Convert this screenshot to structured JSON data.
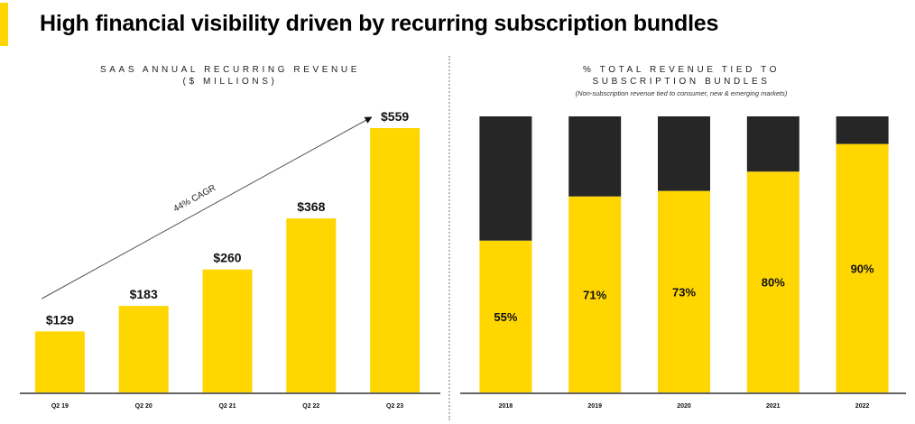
{
  "header": {
    "title": "High financial visibility driven by recurring subscription bundles",
    "accent_color": "#FFD600"
  },
  "colors": {
    "bar_yellow": "#FFD600",
    "bar_dark": "#262626",
    "axis": "#333333"
  },
  "chart_data": [
    {
      "type": "bar",
      "title_line1": "SAAS ANNUAL RECURRING REVENUE",
      "title_line2": "($ MILLIONS)",
      "categories": [
        "Q2 19",
        "Q2 20",
        "Q2 21",
        "Q2 22",
        "Q2 23"
      ],
      "values": [
        129,
        183,
        260,
        368,
        559
      ],
      "data_labels": [
        "$129",
        "$183",
        "$260",
        "$368",
        "$559"
      ],
      "ylim": [
        0,
        559
      ],
      "annotation": {
        "text": "44% CAGR",
        "type": "arrow",
        "from": "Q2 19",
        "to": "Q2 23"
      },
      "xlabel": "",
      "ylabel": "",
      "grid": false
    },
    {
      "type": "bar",
      "stacked": true,
      "title_line1": "% TOTAL REVENUE TIED TO",
      "title_line2": "SUBSCRIPTION BUNDLES",
      "subtitle": "(Non-subscription revenue tied to consumer, new & emerging markets)",
      "categories": [
        "2018",
        "2019",
        "2020",
        "2021",
        "2022"
      ],
      "series": [
        {
          "name": "Subscription bundles",
          "values": [
            55,
            71,
            73,
            80,
            90
          ],
          "color": "#FFD600"
        },
        {
          "name": "Non-subscription",
          "values": [
            45,
            29,
            27,
            20,
            10
          ],
          "color": "#262626"
        }
      ],
      "data_labels": [
        "55%",
        "71%",
        "73%",
        "80%",
        "90%"
      ],
      "ylim": [
        0,
        100
      ],
      "xlabel": "",
      "ylabel": "",
      "grid": false
    }
  ]
}
